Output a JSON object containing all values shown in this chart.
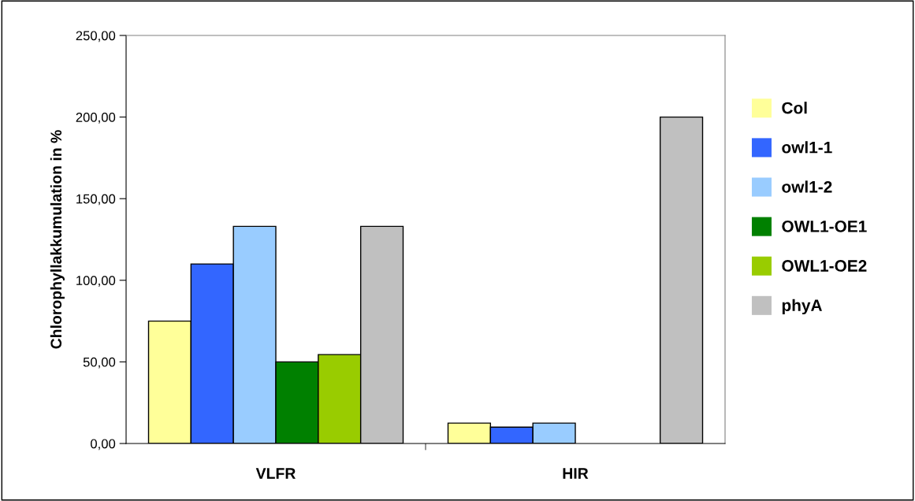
{
  "chart_data": {
    "type": "bar",
    "ylabel": "Chlorophyllakkumulation in %",
    "categories": [
      "VLFR",
      "HIR"
    ],
    "series": [
      {
        "name": "Col",
        "color": "#ffff99",
        "values": [
          75,
          12.5
        ]
      },
      {
        "name": "owl1-1",
        "color": "#3366ff",
        "values": [
          110,
          10
        ]
      },
      {
        "name": "owl1-2",
        "color": "#99ccff",
        "values": [
          133,
          12.5
        ]
      },
      {
        "name": "OWL1-OE1",
        "color": "#008000",
        "values": [
          50,
          null
        ]
      },
      {
        "name": "OWL1-OE2",
        "color": "#99cc00",
        "values": [
          54.5,
          null
        ]
      },
      {
        "name": "phyA",
        "color": "#c0c0c0",
        "values": [
          133,
          200
        ]
      }
    ],
    "ylim": [
      0,
      250
    ],
    "yticks": [
      {
        "value": 0,
        "label": "0,00"
      },
      {
        "value": 50,
        "label": "50,00"
      },
      {
        "value": 100,
        "label": "100,00"
      },
      {
        "value": 150,
        "label": "150,00"
      },
      {
        "value": 200,
        "label": "200,00"
      },
      {
        "value": 250,
        "label": "250,00"
      }
    ],
    "legend": "right",
    "grid": false
  }
}
